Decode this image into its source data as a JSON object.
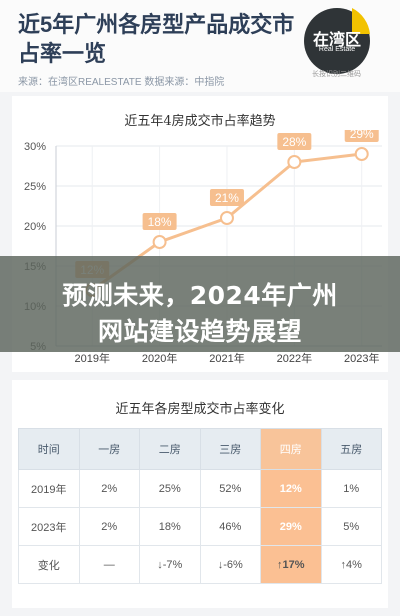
{
  "header": {
    "title": "近5年广州各房型产品成交市占率一览",
    "meta": "来源：在湾区REALESTATE 数据来源：中指院",
    "logo_text": "在湾区",
    "logo_sub": "Real Estate",
    "logo_tag": "长按识别二维码"
  },
  "banner": {
    "line1": "预测未来，2024年广州",
    "line2": "网站建设趋势展望"
  },
  "chart_data": {
    "type": "line",
    "title": "近五年4房成交市占率趋势",
    "categories": [
      "2019年",
      "2020年",
      "2021年",
      "2022年",
      "2023年"
    ],
    "values": [
      12,
      18,
      21,
      28,
      29
    ],
    "value_labels": [
      "12%",
      "18%",
      "21%",
      "28%",
      "29%"
    ],
    "yticks": [
      "30%",
      "25%",
      "20%",
      "15%",
      "10%",
      "5%"
    ],
    "ylim": [
      5,
      30
    ],
    "grid": true,
    "color": "#f6bf8f"
  },
  "table": {
    "title": "近五年各房型成交市占率变化",
    "headers": [
      "时间",
      "一房",
      "二房",
      "三房",
      "四房",
      "五房"
    ],
    "rows": [
      [
        "2019年",
        "2%",
        "25%",
        "52%",
        "12%",
        "1%"
      ],
      [
        "2023年",
        "2%",
        "18%",
        "46%",
        "29%",
        "5%"
      ]
    ],
    "change": {
      "label": "变化",
      "cells": [
        "—",
        "↓-7%",
        "↓-6%",
        "↑17%",
        "↑4%"
      ]
    }
  }
}
